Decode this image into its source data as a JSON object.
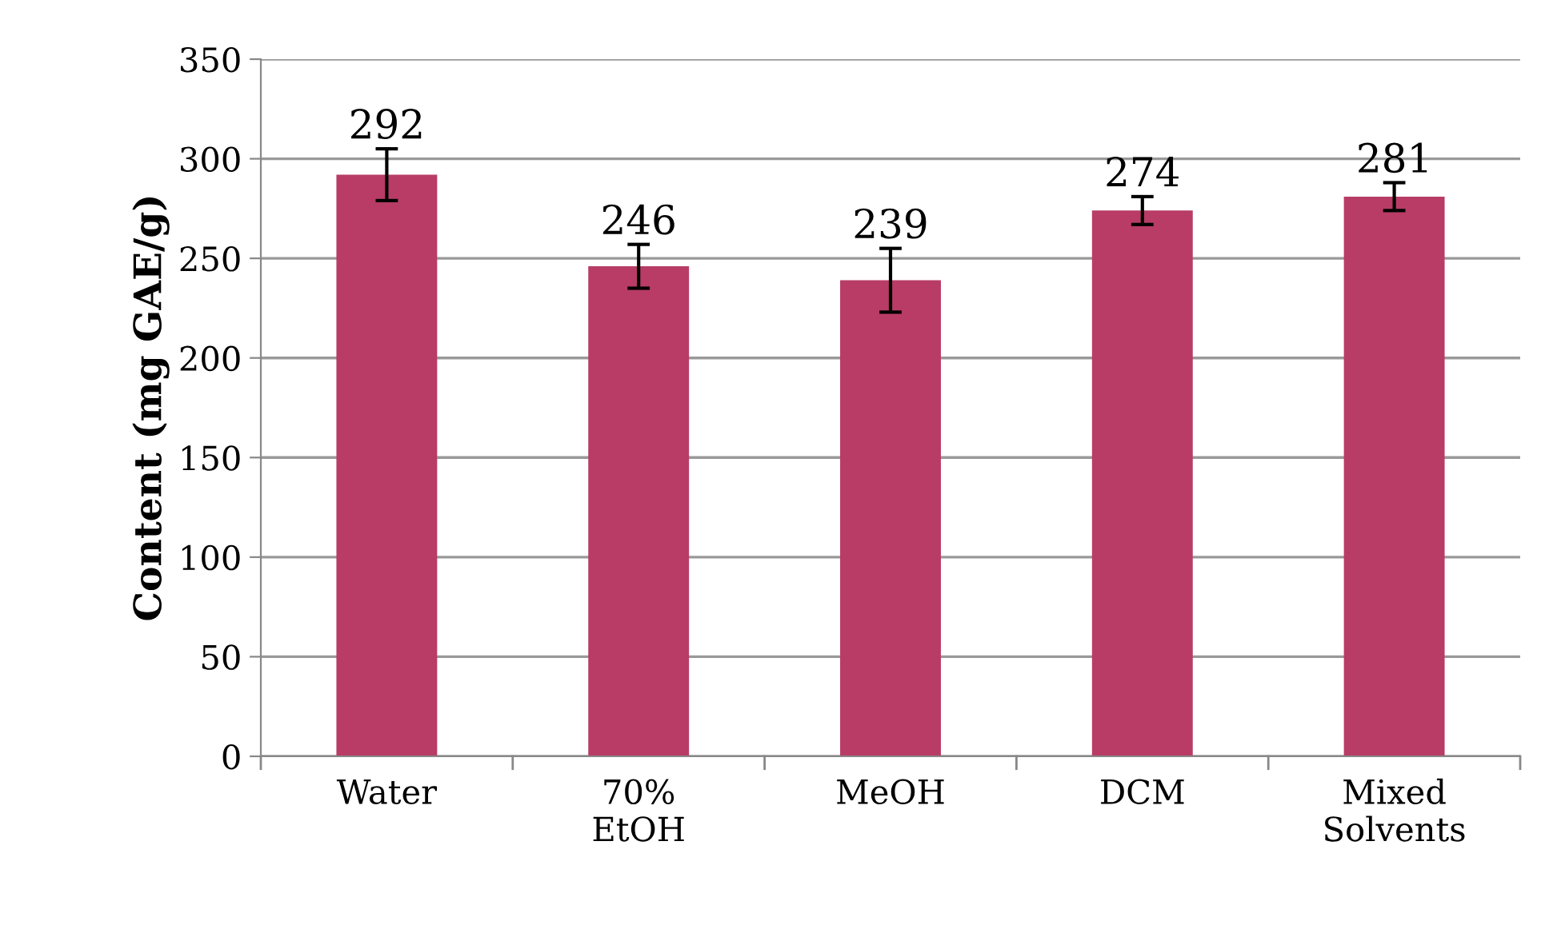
{
  "chart_data": {
    "type": "bar",
    "ylabel": "Content (mg GAE/g)",
    "categories": [
      "Water",
      "70%\nEtOH",
      "MeOH",
      "DCM",
      "Mixed\nSolvents"
    ],
    "values": [
      292,
      246,
      239,
      274,
      281
    ],
    "errors": [
      13,
      11,
      16,
      7,
      7
    ],
    "color": "#b83c66",
    "ylim": [
      0,
      350
    ],
    "yticks": [
      0,
      50,
      100,
      150,
      200,
      250,
      300,
      350
    ],
    "grid": "y",
    "data_labels": true,
    "legend": false
  }
}
